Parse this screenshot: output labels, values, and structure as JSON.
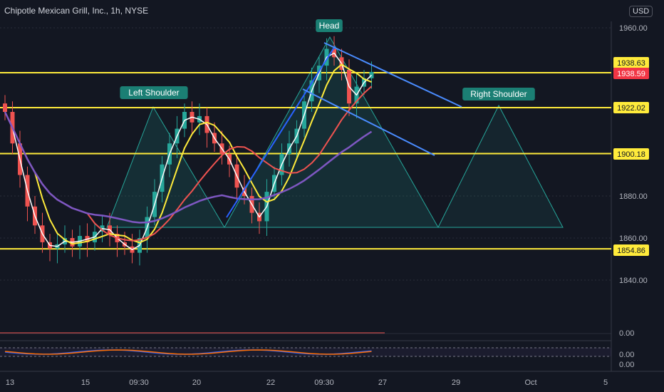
{
  "chart_title": "Chipotle Mexican Grill, Inc., 1h, NYSE",
  "currency_button": "USD",
  "chart_data": {
    "type": "candlestick",
    "title": "Chipotle Mexican Grill, Inc., 1h, NYSE",
    "ylim": [
      1835,
      1965
    ],
    "y_ticks": [
      "1960.00",
      "1880.00",
      "1860.00",
      "1840.00"
    ],
    "x_ticks": [
      "13",
      "15",
      "09:30",
      "20",
      "22",
      "09:30",
      "27",
      "29",
      "Oct",
      "5"
    ],
    "price_labels": [
      {
        "text": "1938.63",
        "value": 1938.63,
        "color": "#ffeb3b"
      },
      {
        "text": "1938.59",
        "value": 1938.59,
        "color": "#f23645"
      },
      {
        "text": "1922.02",
        "value": 1922.02,
        "color": "#ffeb3b"
      },
      {
        "text": "1900.18",
        "value": 1900.18,
        "color": "#ffeb3b"
      },
      {
        "text": "1854.86",
        "value": 1854.86,
        "color": "#ffeb3b"
      }
    ],
    "horizontal_levels": [
      1938.63,
      1922.02,
      1900.18,
      1854.86
    ],
    "pattern_labels": [
      "Left Shoulder",
      "Head",
      "Right Shoulder"
    ],
    "close_series": [
      1920,
      1905,
      1890,
      1875,
      1866,
      1858,
      1855,
      1857,
      1860,
      1856,
      1861,
      1858,
      1863,
      1866,
      1862,
      1858,
      1856,
      1853,
      1860,
      1870,
      1882,
      1895,
      1905,
      1912,
      1920,
      1915,
      1918,
      1910,
      1905,
      1900,
      1895,
      1884,
      1880,
      1872,
      1868,
      1882,
      1890,
      1900,
      1905,
      1912,
      1925,
      1935,
      1942,
      1950,
      1946,
      1940,
      1924,
      1932,
      1936,
      1939
    ],
    "indicator_ticks": [
      "0.00",
      "0.00",
      "0.00"
    ]
  }
}
